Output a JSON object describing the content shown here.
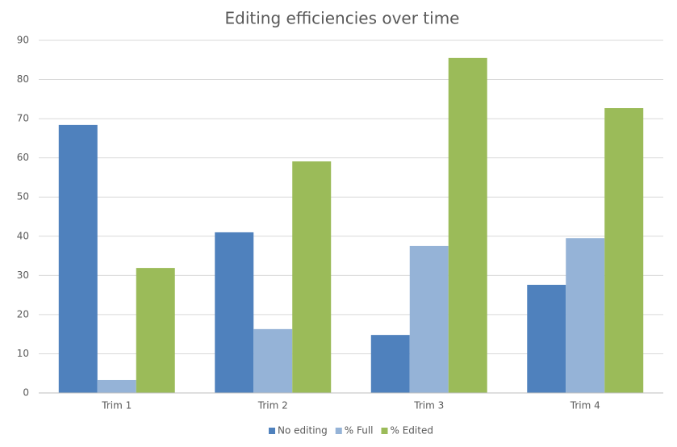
{
  "chart_data": {
    "type": "bar",
    "title": "Editing efficiencies over time",
    "categories": [
      "Trim 1",
      "Trim 2",
      "Trim 3",
      "Trim 4"
    ],
    "series": [
      {
        "name": "No editing",
        "color": "#4f81bd",
        "values": [
          68.4,
          41.0,
          14.8,
          27.6
        ]
      },
      {
        "name": "% Full",
        "color": "#95b3d7",
        "values": [
          3.3,
          16.3,
          37.5,
          39.5
        ]
      },
      {
        "name": "% Edited",
        "color": "#9bbb59",
        "values": [
          31.9,
          59.1,
          85.5,
          72.7
        ]
      }
    ],
    "ylim": [
      0,
      90
    ],
    "yticks": [
      0,
      10,
      20,
      30,
      40,
      50,
      60,
      70,
      80,
      90
    ],
    "grid": true,
    "legend": "bottom"
  }
}
